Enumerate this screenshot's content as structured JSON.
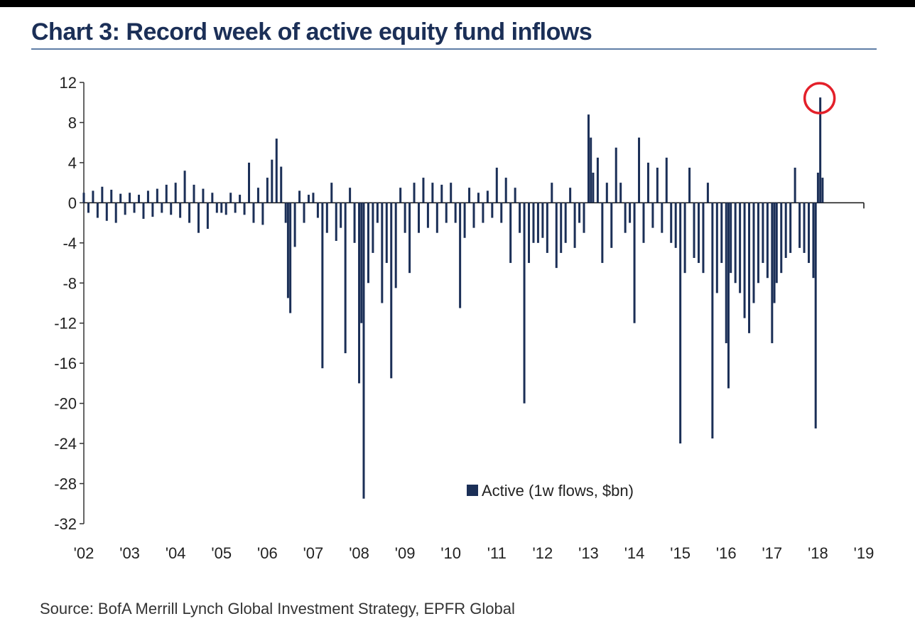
{
  "page": {
    "title": "Chart 3: Record week of active equity fund inflows"
  },
  "source": "Source: BofA Merrill Lynch Global Investment Strategy, EPFR Global",
  "colors": {
    "bar": "#1b2f57",
    "highlight": "#e3202a",
    "title": "#1b2f57",
    "rule": "#5f7ea6"
  },
  "chart_data": {
    "type": "bar",
    "title": "Chart 3: Record week of active equity fund inflows",
    "xlabel": "",
    "ylabel": "",
    "x_tick_labels": [
      "'02",
      "'03",
      "'04",
      "'05",
      "'06",
      "'07",
      "'08",
      "'09",
      "'10",
      "'11",
      "'12",
      "'13",
      "'14",
      "'15",
      "'16",
      "'17",
      "'18",
      "'19"
    ],
    "y_ticks": [
      12,
      8,
      4,
      0,
      -4,
      -8,
      -12,
      -16,
      -20,
      -24,
      -28,
      -32
    ],
    "ylim": [
      -32,
      12
    ],
    "xlim": [
      2002.0,
      2019.0
    ],
    "grid": false,
    "legend": {
      "position": "bottom-center",
      "entries": [
        "Active (1w flows, $bn)"
      ]
    },
    "annotation": {
      "type": "circle",
      "x": 2018.05,
      "y": 10.5,
      "note": "record week highlighted"
    },
    "series": [
      {
        "name": "Active (1w flows, $bn)",
        "points": [
          [
            2002.0,
            1.0
          ],
          [
            2002.1,
            -1.0
          ],
          [
            2002.2,
            1.2
          ],
          [
            2002.3,
            -1.5
          ],
          [
            2002.4,
            1.6
          ],
          [
            2002.5,
            -1.8
          ],
          [
            2002.6,
            1.3
          ],
          [
            2002.7,
            -2.0
          ],
          [
            2002.8,
            0.9
          ],
          [
            2002.9,
            -1.2
          ],
          [
            2003.0,
            1.0
          ],
          [
            2003.1,
            -1.0
          ],
          [
            2003.2,
            0.8
          ],
          [
            2003.3,
            -1.6
          ],
          [
            2003.4,
            1.2
          ],
          [
            2003.5,
            -1.4
          ],
          [
            2003.6,
            1.4
          ],
          [
            2003.7,
            -1.0
          ],
          [
            2003.8,
            1.8
          ],
          [
            2003.9,
            -1.2
          ],
          [
            2004.0,
            2.0
          ],
          [
            2004.1,
            -1.5
          ],
          [
            2004.2,
            3.2
          ],
          [
            2004.3,
            -2.0
          ],
          [
            2004.4,
            1.8
          ],
          [
            2004.5,
            -3.0
          ],
          [
            2004.6,
            1.4
          ],
          [
            2004.7,
            -2.6
          ],
          [
            2004.8,
            1.0
          ],
          [
            2004.9,
            -1.0
          ],
          [
            2005.0,
            -1.0
          ],
          [
            2005.1,
            -1.2
          ],
          [
            2005.2,
            1.0
          ],
          [
            2005.3,
            -1.0
          ],
          [
            2005.4,
            0.8
          ],
          [
            2005.5,
            -1.2
          ],
          [
            2005.6,
            4.0
          ],
          [
            2005.7,
            -2.0
          ],
          [
            2005.8,
            1.5
          ],
          [
            2005.9,
            -2.2
          ],
          [
            2006.0,
            2.5
          ],
          [
            2006.1,
            4.3
          ],
          [
            2006.2,
            6.4
          ],
          [
            2006.3,
            3.6
          ],
          [
            2006.4,
            -2.0
          ],
          [
            2006.45,
            -9.5
          ],
          [
            2006.5,
            -11.0
          ],
          [
            2006.6,
            -4.4
          ],
          [
            2006.7,
            1.2
          ],
          [
            2006.8,
            -2.0
          ],
          [
            2006.9,
            0.8
          ],
          [
            2007.0,
            1.0
          ],
          [
            2007.1,
            -1.5
          ],
          [
            2007.2,
            -16.5
          ],
          [
            2007.3,
            -3.0
          ],
          [
            2007.4,
            2.0
          ],
          [
            2007.5,
            -3.8
          ],
          [
            2007.6,
            -2.5
          ],
          [
            2007.7,
            -15.0
          ],
          [
            2007.8,
            1.5
          ],
          [
            2007.9,
            -4.0
          ],
          [
            2008.0,
            -18.0
          ],
          [
            2008.05,
            -12.0
          ],
          [
            2008.1,
            -29.5
          ],
          [
            2008.2,
            -8.0
          ],
          [
            2008.3,
            -5.0
          ],
          [
            2008.4,
            -2.0
          ],
          [
            2008.5,
            -10.0
          ],
          [
            2008.6,
            -6.0
          ],
          [
            2008.7,
            -17.5
          ],
          [
            2008.8,
            -8.5
          ],
          [
            2008.9,
            1.5
          ],
          [
            2009.0,
            -3.0
          ],
          [
            2009.1,
            -7.0
          ],
          [
            2009.2,
            2.0
          ],
          [
            2009.3,
            -3.0
          ],
          [
            2009.4,
            2.5
          ],
          [
            2009.5,
            -2.5
          ],
          [
            2009.6,
            2.0
          ],
          [
            2009.7,
            -3.0
          ],
          [
            2009.8,
            1.8
          ],
          [
            2009.9,
            -2.0
          ],
          [
            2010.0,
            2.0
          ],
          [
            2010.1,
            -2.0
          ],
          [
            2010.2,
            -10.5
          ],
          [
            2010.3,
            -3.5
          ],
          [
            2010.4,
            1.5
          ],
          [
            2010.5,
            -2.5
          ],
          [
            2010.6,
            1.0
          ],
          [
            2010.7,
            -2.0
          ],
          [
            2010.8,
            1.2
          ],
          [
            2010.9,
            -1.5
          ],
          [
            2011.0,
            3.5
          ],
          [
            2011.1,
            -2.0
          ],
          [
            2011.2,
            2.5
          ],
          [
            2011.3,
            -6.0
          ],
          [
            2011.4,
            1.5
          ],
          [
            2011.5,
            -3.0
          ],
          [
            2011.6,
            -20.0
          ],
          [
            2011.7,
            -6.0
          ],
          [
            2011.8,
            -4.0
          ],
          [
            2011.9,
            -4.0
          ],
          [
            2012.0,
            -3.5
          ],
          [
            2012.1,
            -5.0
          ],
          [
            2012.2,
            2.0
          ],
          [
            2012.3,
            -6.5
          ],
          [
            2012.4,
            -5.0
          ],
          [
            2012.5,
            -4.0
          ],
          [
            2012.6,
            1.5
          ],
          [
            2012.7,
            -4.5
          ],
          [
            2012.8,
            -2.0
          ],
          [
            2012.9,
            -3.0
          ],
          [
            2013.0,
            8.8
          ],
          [
            2013.05,
            6.5
          ],
          [
            2013.1,
            3.0
          ],
          [
            2013.2,
            4.5
          ],
          [
            2013.3,
            -6.0
          ],
          [
            2013.4,
            2.0
          ],
          [
            2013.5,
            -4.5
          ],
          [
            2013.6,
            5.5
          ],
          [
            2013.7,
            2.0
          ],
          [
            2013.8,
            -3.0
          ],
          [
            2013.9,
            -2.0
          ],
          [
            2014.0,
            -12.0
          ],
          [
            2014.1,
            6.5
          ],
          [
            2014.2,
            -4.0
          ],
          [
            2014.3,
            4.0
          ],
          [
            2014.4,
            -2.5
          ],
          [
            2014.5,
            3.5
          ],
          [
            2014.6,
            -3.0
          ],
          [
            2014.7,
            4.5
          ],
          [
            2014.8,
            -4.0
          ],
          [
            2014.9,
            -4.5
          ],
          [
            2015.0,
            -24.0
          ],
          [
            2015.1,
            -7.0
          ],
          [
            2015.2,
            3.5
          ],
          [
            2015.3,
            -5.5
          ],
          [
            2015.4,
            -6.0
          ],
          [
            2015.5,
            -7.0
          ],
          [
            2015.6,
            2.0
          ],
          [
            2015.7,
            -23.5
          ],
          [
            2015.8,
            -9.0
          ],
          [
            2015.9,
            -6.0
          ],
          [
            2016.0,
            -14.0
          ],
          [
            2016.05,
            -18.5
          ],
          [
            2016.1,
            -7.0
          ],
          [
            2016.2,
            -8.0
          ],
          [
            2016.3,
            -9.0
          ],
          [
            2016.4,
            -11.5
          ],
          [
            2016.5,
            -13.0
          ],
          [
            2016.6,
            -10.0
          ],
          [
            2016.7,
            -8.0
          ],
          [
            2016.8,
            -6.0
          ],
          [
            2016.9,
            -7.5
          ],
          [
            2017.0,
            -14.0
          ],
          [
            2017.05,
            -10.0
          ],
          [
            2017.1,
            -8.0
          ],
          [
            2017.2,
            -7.0
          ],
          [
            2017.3,
            -5.5
          ],
          [
            2017.4,
            -5.0
          ],
          [
            2017.5,
            3.5
          ],
          [
            2017.6,
            -4.5
          ],
          [
            2017.7,
            -5.0
          ],
          [
            2017.8,
            -6.0
          ],
          [
            2017.9,
            -7.5
          ],
          [
            2017.95,
            -22.5
          ],
          [
            2018.0,
            3.0
          ],
          [
            2018.05,
            10.5
          ],
          [
            2018.1,
            2.5
          ]
        ]
      }
    ]
  }
}
